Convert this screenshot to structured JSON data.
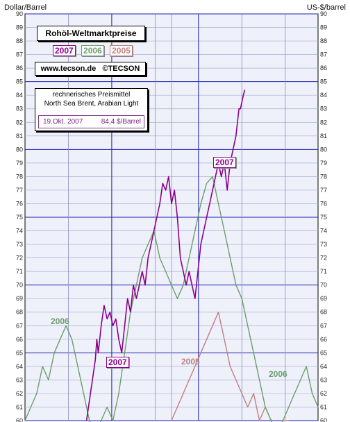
{
  "chart_data": {
    "type": "line",
    "title": "Rohöl-Weltmarktpreise",
    "ylabel_left": "Dollar/Barrel",
    "ylabel_right": "US-$/barrel",
    "ylim": [
      60,
      90
    ],
    "yticks": [
      60,
      61,
      62,
      63,
      64,
      65,
      66,
      67,
      68,
      69,
      70,
      71,
      72,
      73,
      74,
      75,
      76,
      77,
      78,
      79,
      80,
      81,
      82,
      83,
      84,
      85,
      86,
      87,
      88,
      89,
      90
    ],
    "grid": true,
    "legend_placement": "top-left",
    "legend": [
      "2007",
      "2006",
      "2005"
    ],
    "website": "www.tecson.de",
    "copyright": "©TECSON",
    "note_line1": "rechnerisches Preismittel",
    "note_line2": "North Sea Brent, Arabian Light",
    "latest_date": "19.Okt. 2007",
    "latest_price": "84,4 $/Barrel",
    "series_labels": [
      {
        "text": "2007",
        "near": "upper-right"
      },
      {
        "text": "2007",
        "near": "lower-left"
      },
      {
        "text": "2006",
        "near": "left"
      },
      {
        "text": "2006",
        "near": "lower-right"
      },
      {
        "text": "2005",
        "near": "center"
      }
    ],
    "series": [
      {
        "name": "2007",
        "color": "#8b008b",
        "x": [
          0.21,
          0.22,
          0.23,
          0.24,
          0.245,
          0.25,
          0.26,
          0.27,
          0.28,
          0.29,
          0.3,
          0.31,
          0.32,
          0.33,
          0.34,
          0.35,
          0.36,
          0.37,
          0.38,
          0.39,
          0.4,
          0.41,
          0.42,
          0.43,
          0.44,
          0.45,
          0.46,
          0.47,
          0.48,
          0.49,
          0.5,
          0.51,
          0.52,
          0.53,
          0.54,
          0.55,
          0.56,
          0.57,
          0.58,
          0.59,
          0.6,
          0.61,
          0.62,
          0.63,
          0.64,
          0.65,
          0.66,
          0.67,
          0.68,
          0.69,
          0.7,
          0.71,
          0.72,
          0.73,
          0.735,
          0.74,
          0.745,
          0.75
        ],
        "values": [
          60,
          61.5,
          63,
          64.5,
          66,
          65,
          67,
          68.5,
          67.5,
          68,
          67,
          67.5,
          66,
          65,
          67,
          69,
          68,
          70,
          69,
          70,
          71,
          70,
          72,
          73,
          74,
          75,
          76,
          77.5,
          77,
          78,
          76,
          77,
          75,
          72,
          71,
          70,
          71,
          70,
          69,
          71,
          73,
          74,
          75,
          76,
          77,
          78,
          79,
          78,
          79,
          77,
          79,
          80,
          81,
          83,
          83,
          83.5,
          84,
          84.4
        ]
      },
      {
        "name": "2006",
        "color": "#6b9e6b",
        "x": [
          0.0,
          0.02,
          0.04,
          0.06,
          0.08,
          0.1,
          0.12,
          0.14,
          0.16,
          0.18,
          0.2,
          0.22,
          0.24,
          0.26,
          0.28,
          0.3,
          0.32,
          0.34,
          0.36,
          0.38,
          0.4,
          0.42,
          0.44,
          0.46,
          0.48,
          0.5,
          0.52,
          0.54,
          0.56,
          0.58,
          0.6,
          0.62,
          0.64,
          0.66,
          0.68,
          0.7,
          0.72,
          0.74,
          0.76,
          0.78,
          0.8,
          0.82,
          0.84,
          0.86,
          0.88,
          0.9,
          0.92,
          0.94,
          0.96,
          0.98,
          1.0
        ],
        "values": [
          60,
          61,
          62,
          64,
          63,
          65,
          66,
          67,
          66,
          64,
          62,
          60,
          59,
          60,
          61,
          60,
          62,
          65,
          68,
          70,
          72,
          73,
          74,
          72,
          71,
          70,
          69,
          70,
          72,
          74,
          76,
          77.5,
          78,
          76,
          74,
          72,
          70,
          69,
          67,
          65,
          63,
          61,
          60,
          59,
          60,
          61,
          62,
          63,
          64,
          62,
          61
        ]
      },
      {
        "name": "2005",
        "color": "#c08080",
        "x": [
          0.5,
          0.52,
          0.54,
          0.56,
          0.58,
          0.6,
          0.62,
          0.64,
          0.66,
          0.68,
          0.7,
          0.72,
          0.74,
          0.76,
          0.78,
          0.8,
          0.82,
          0.84,
          0.86,
          0.88,
          0.9
        ],
        "values": [
          60,
          61,
          62,
          63,
          64,
          65,
          66,
          67,
          68,
          66,
          64,
          63,
          62,
          61,
          62,
          60,
          61,
          60,
          59,
          60,
          60
        ]
      }
    ]
  }
}
